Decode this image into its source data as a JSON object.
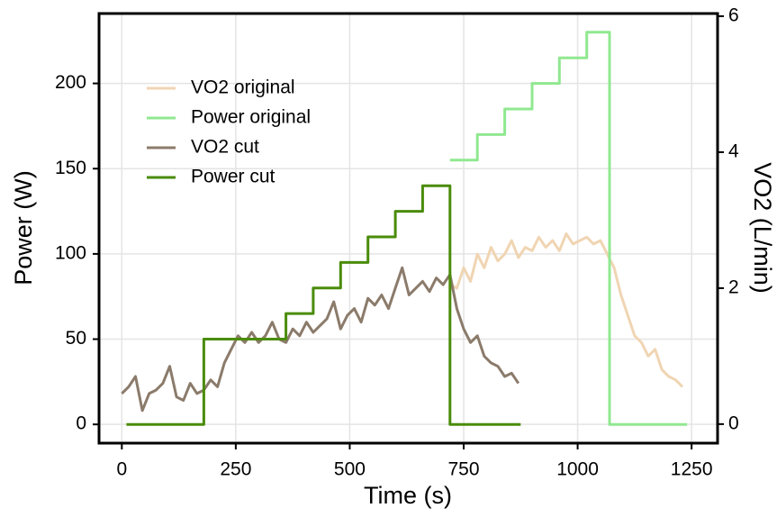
{
  "chart_data": {
    "type": "line",
    "xlabel": "Time (s)",
    "ylabel": "Power (W)",
    "y2label": "VO2 (L/min)",
    "xlim": [
      -50,
      1307
    ],
    "xticks": [
      0,
      250,
      500,
      750,
      1000,
      1250
    ],
    "ylim": [
      -11,
      241
    ],
    "yticks": [
      0,
      50,
      100,
      150,
      200
    ],
    "y2lim": [
      -0.28,
      6.04
    ],
    "y2ticks": [
      0,
      2,
      4,
      6
    ],
    "grid": true,
    "legend": "upper left",
    "series": [
      {
        "name": "VO2 original",
        "color": "#f0d5b3",
        "axis": "y2",
        "x": [
          720,
          735,
          750,
          765,
          780,
          795,
          810,
          825,
          840,
          855,
          870,
          885,
          900,
          915,
          930,
          945,
          960,
          975,
          990,
          1005,
          1020,
          1035,
          1050,
          1065,
          1080,
          1095,
          1110,
          1125,
          1140,
          1155,
          1170,
          1185,
          1200,
          1215,
          1230
        ],
        "values": [
          2.05,
          2.0,
          2.3,
          2.1,
          2.5,
          2.3,
          2.6,
          2.4,
          2.5,
          2.7,
          2.45,
          2.6,
          2.55,
          2.75,
          2.6,
          2.7,
          2.55,
          2.8,
          2.65,
          2.7,
          2.75,
          2.65,
          2.7,
          2.5,
          2.3,
          1.9,
          1.6,
          1.3,
          1.2,
          1.0,
          1.1,
          0.8,
          0.7,
          0.65,
          0.55
        ]
      },
      {
        "name": "Power original",
        "color": "#90e890",
        "x": [
          720,
          780,
          780,
          840,
          840,
          900,
          900,
          960,
          960,
          1020,
          1020,
          1070,
          1070,
          1240
        ],
        "values": [
          155,
          155,
          170,
          170,
          185,
          185,
          200,
          200,
          215,
          215,
          230,
          230,
          0,
          0
        ]
      },
      {
        "name": "VO2 cut",
        "color": "#8b7b6b",
        "axis": "y2",
        "x": [
          0,
          15,
          30,
          45,
          60,
          75,
          90,
          105,
          120,
          135,
          150,
          165,
          180,
          195,
          210,
          225,
          240,
          255,
          270,
          285,
          300,
          315,
          330,
          345,
          360,
          375,
          390,
          405,
          420,
          435,
          450,
          465,
          480,
          495,
          510,
          525,
          540,
          555,
          570,
          585,
          600,
          615,
          630,
          645,
          660,
          675,
          690,
          705,
          720,
          735,
          750,
          765,
          780,
          795,
          810,
          825,
          840,
          855,
          870
        ],
        "values": [
          0.45,
          0.55,
          0.7,
          0.2,
          0.45,
          0.5,
          0.6,
          0.85,
          0.4,
          0.35,
          0.6,
          0.45,
          0.5,
          0.65,
          0.55,
          0.9,
          1.1,
          1.3,
          1.2,
          1.35,
          1.2,
          1.3,
          1.5,
          1.25,
          1.2,
          1.4,
          1.3,
          1.5,
          1.35,
          1.45,
          1.55,
          1.8,
          1.4,
          1.6,
          1.7,
          1.5,
          1.85,
          1.75,
          1.9,
          1.7,
          2.0,
          2.3,
          1.9,
          2.0,
          2.1,
          1.95,
          2.15,
          2.05,
          2.2,
          1.7,
          1.4,
          1.2,
          1.3,
          1.0,
          0.9,
          0.85,
          0.7,
          0.75,
          0.6
        ]
      },
      {
        "name": "Power cut",
        "color": "#4a8c0a",
        "x": [
          10,
          180,
          180,
          360,
          360,
          420,
          420,
          480,
          480,
          540,
          540,
          600,
          600,
          660,
          660,
          720,
          720,
          875
        ],
        "values": [
          0,
          0,
          50,
          50,
          65,
          65,
          80,
          80,
          95,
          95,
          110,
          110,
          125,
          125,
          140,
          140,
          0,
          0
        ]
      }
    ]
  }
}
